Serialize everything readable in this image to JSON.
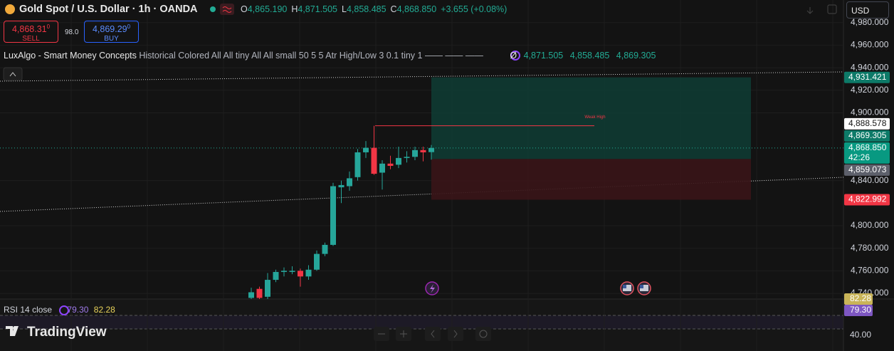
{
  "header": {
    "symbol": "Gold Spot / U.S. Dollar · 1h · OANDA",
    "ohlc": [
      {
        "key": "O",
        "value": "4,865.190"
      },
      {
        "key": "H",
        "value": "4,871.505"
      },
      {
        "key": "L",
        "value": "4,858.485"
      },
      {
        "key": "C",
        "value": "4,868.850"
      }
    ],
    "change": "+3.655 (+0.08%)"
  },
  "trade": {
    "sell_price": "4,868.31",
    "sell_pip": "0",
    "sell_label": "SELL",
    "spread": "98.0",
    "buy_price": "4,869.29",
    "buy_pip": "0",
    "buy_label": "BUY"
  },
  "indicator": {
    "name": "LuxAlgo - Smart Money Concepts",
    "params": "Historical Colored All All tiny All All small 50 5 5 Atr High/Low 3 0.1 tiny 1 —— —— ——",
    "symbol": "Ø",
    "values": [
      "4,871.505",
      "4,858.485",
      "4,869.305"
    ]
  },
  "currency": "USD",
  "chart_data": {
    "type": "candlestick",
    "ylim": [
      4735,
      5000
    ],
    "yticks": [
      {
        "value": 4980,
        "label": "4,980.000"
      },
      {
        "value": 4960,
        "label": "4,960.000"
      },
      {
        "value": 4940,
        "label": "4,940.000"
      },
      {
        "value": 4920,
        "label": "4,920.000"
      },
      {
        "value": 4900,
        "label": "4,900.000"
      },
      {
        "value": 4840,
        "label": "4,840.000"
      },
      {
        "value": 4800,
        "label": "4,800.000"
      },
      {
        "value": 4780,
        "label": "4,780.000"
      },
      {
        "value": 4760,
        "label": "4,760.000"
      },
      {
        "value": 4740,
        "label": "4,740.000"
      }
    ],
    "grid": true,
    "up_color": "#26a69a",
    "down_color": "#f23645",
    "open": [
      4736,
      4744,
      4737,
      4752,
      4759,
      4759,
      4760,
      4755,
      4761,
      4775,
      4783,
      4834,
      4835,
      4843,
      4865,
      4869,
      4847,
      4855,
      4854,
      4860,
      4861,
      4867,
      4865.19
    ],
    "high": [
      4745,
      4746,
      4758,
      4761,
      4763,
      4764,
      4762,
      4765,
      4778,
      4785,
      4838,
      4840,
      4848,
      4868,
      4875,
      4888.578,
      4858,
      4862,
      4870,
      4866,
      4870,
      4870,
      4871.505
    ],
    "low": [
      4735,
      4735,
      4735,
      4750,
      4755,
      4757,
      4746,
      4752,
      4760,
      4773,
      4782,
      4820,
      4831,
      4840,
      4860,
      4845,
      4832,
      4850,
      4851,
      4856,
      4858,
      4857,
      4858.485
    ],
    "close": [
      4741,
      4736,
      4752,
      4759,
      4760,
      4760,
      4755,
      4761,
      4775,
      4783,
      4835,
      4836,
      4842,
      4865,
      4869,
      4846,
      4855,
      4853,
      4860,
      4861,
      4867,
      4865,
      4868.85
    ],
    "zones": [
      {
        "top": 4931.421,
        "bottom": 4859.073,
        "color": "#0f3b33"
      },
      {
        "top": 4859.073,
        "bottom": 4822.992,
        "color": "#3a1518"
      }
    ],
    "weak_high": {
      "label": "Weak High",
      "value": 4888.578,
      "color": "#f23645"
    },
    "price_labels": [
      {
        "value": 4931.421,
        "label": "4,931.421",
        "color": "#0d7a68",
        "text_color": "#ffffff"
      },
      {
        "value": 4888.578,
        "label": "4,888.578",
        "color": "#ffffff",
        "text_color": "#131313"
      },
      {
        "value": 4869.305,
        "label": "4,869.305",
        "color": "#0d7a68",
        "text_color": "#ffffff"
      },
      {
        "value": 4868.85,
        "label": "4,868.850",
        "color": "#089981",
        "text_color": "#ffffff",
        "countdown": "42:26"
      },
      {
        "value": 4859.073,
        "label": "4,859.073",
        "color": "#5d606b",
        "text_color": "#ffffff"
      },
      {
        "value": 4822.992,
        "label": "4,822.992",
        "color": "#f23645",
        "text_color": "#ffffff"
      }
    ]
  },
  "rsi": {
    "name": "RSI",
    "length": "14",
    "source": "close",
    "values": [
      "79.30",
      "82.28"
    ],
    "axis_labels": [
      {
        "label": "82.28",
        "color": "#c9b458"
      },
      {
        "label": "79.30",
        "color": "#7e57c2"
      },
      {
        "label": "40.00",
        "color": null
      }
    ]
  },
  "brand": "TradingView"
}
